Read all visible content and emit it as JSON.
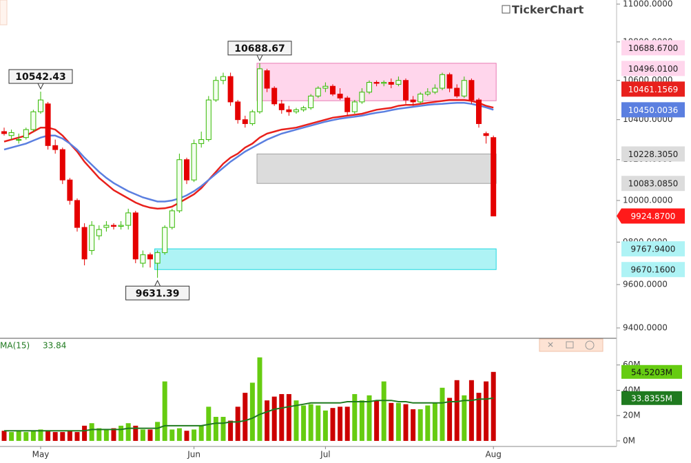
{
  "chart_data": {
    "type": "candlestick",
    "brand": "TickerChart",
    "categories": [
      null,
      null,
      null,
      null,
      null,
      "May",
      null,
      null,
      null,
      null,
      null,
      null,
      null,
      null,
      null,
      null,
      null,
      null,
      null,
      null,
      null,
      null,
      null,
      null,
      null,
      null,
      "Jun",
      null,
      null,
      null,
      null,
      null,
      null,
      null,
      null,
      null,
      null,
      null,
      null,
      null,
      null,
      null,
      null,
      null,
      "Jul",
      null,
      null,
      null,
      null,
      null,
      null,
      null,
      null,
      null,
      null,
      null,
      null,
      null,
      null,
      null,
      null,
      null,
      null,
      null,
      null,
      null,
      null,
      "Aug"
    ],
    "open": [
      10340,
      10320,
      10300,
      10310,
      10350,
      10440,
      10480,
      10270,
      10250,
      10100,
      10000,
      9870,
      9760,
      9830,
      9870,
      9880,
      9875,
      9880,
      9940,
      9700,
      9740,
      9700,
      9750,
      9870,
      9950,
      10200,
      10100,
      10280,
      10300,
      10500,
      10600,
      10620,
      10490,
      10400,
      10380,
      10440,
      10650,
      10560,
      10480,
      10450,
      10440,
      10450,
      10460,
      10520,
      10560,
      10570,
      10530,
      10510,
      10440,
      10490,
      10540,
      10590,
      10585,
      10590,
      10580,
      10600,
      10500,
      10490,
      10530,
      10540,
      10560,
      10630,
      10560,
      10520,
      10600,
      10500,
      10330,
      10310
    ],
    "high": [
      10360,
      10350,
      10330,
      10360,
      10450,
      10542.43,
      10490,
      10300,
      10260,
      10110,
      10010,
      9890,
      9900,
      9880,
      9900,
      9890,
      9900,
      9960,
      9950,
      9760,
      9750,
      9760,
      9880,
      9960,
      10230,
      10210,
      10300,
      10340,
      10520,
      10620,
      10640,
      10640,
      10500,
      10420,
      10450,
      10688.67,
      10660,
      10570,
      10500,
      10470,
      10460,
      10470,
      10530,
      10570,
      10590,
      10580,
      10560,
      10520,
      10500,
      10560,
      10600,
      10600,
      10600,
      10610,
      10620,
      10610,
      10520,
      10540,
      10560,
      10580,
      10640,
      10640,
      10580,
      10620,
      10610,
      10510,
      10340,
      10320
    ],
    "low": [
      10320,
      10300,
      10280,
      10300,
      10340,
      10430,
      10250,
      10230,
      10080,
      9980,
      9850,
      9690,
      9740,
      9810,
      9850,
      9860,
      9860,
      9860,
      9700,
      9680,
      9680,
      9631.39,
      9740,
      9860,
      9940,
      10080,
      10090,
      10260,
      10290,
      10490,
      10580,
      10470,
      10380,
      10360,
      10370,
      10430,
      10540,
      10470,
      10430,
      10420,
      10430,
      10440,
      10450,
      10510,
      10540,
      10520,
      10500,
      10420,
      10430,
      10480,
      10530,
      10570,
      10570,
      10560,
      10570,
      10480,
      10470,
      10480,
      10520,
      10530,
      10550,
      10540,
      10510,
      10510,
      10480,
      10360,
      10280,
      9924.87
    ],
    "close": [
      10330,
      10335,
      10300,
      10350,
      10440,
      10500,
      10270,
      10250,
      10100,
      10000,
      9870,
      9720,
      9880,
      9860,
      9880,
      9875,
      9880,
      9940,
      9720,
      9740,
      9720,
      9750,
      9870,
      9950,
      10200,
      10100,
      10280,
      10300,
      10500,
      10600,
      10620,
      10490,
      10400,
      10380,
      10440,
      10660,
      10560,
      10480,
      10450,
      10440,
      10450,
      10460,
      10520,
      10560,
      10570,
      10530,
      10510,
      10440,
      10490,
      10540,
      10590,
      10585,
      10590,
      10580,
      10600,
      10500,
      10490,
      10530,
      10540,
      10560,
      10630,
      10560,
      10520,
      10600,
      10500,
      10380,
      10320,
      9924.87
    ],
    "close_label": "9924.8700",
    "close_tag_color": "#ff1a1a",
    "up_color": "#33b800",
    "down_color": "#e50000",
    "log_scale": true,
    "ylim": [
      9356,
      11022
    ],
    "yticks": [
      {
        "value": 11000,
        "label": "11000.0000"
      },
      {
        "value": 10800,
        "label": "10800.0000"
      },
      {
        "value": 10600,
        "label": "10600.0000"
      },
      {
        "value": 10400,
        "label": "10400.0000"
      },
      {
        "value": 10200,
        "label": "10200.0000"
      },
      {
        "value": 10000,
        "label": "10000.0000"
      },
      {
        "value": 9800,
        "label": "9800.0000"
      },
      {
        "value": 9600,
        "label": "9600.0000"
      },
      {
        "value": 9400,
        "label": "9400.0000"
      }
    ],
    "marked_highs": [
      5,
      35
    ],
    "marked_lows": [
      21
    ],
    "moving_averages": [
      {
        "color": "#e8201c",
        "last_label": "10461.1569",
        "values": [
          10290,
          10300,
          10310,
          10320,
          10340,
          10360,
          10360,
          10350,
          10320,
          10280,
          10240,
          10190,
          10150,
          10110,
          10080,
          10050,
          10030,
          10010,
          9990,
          9975,
          9965,
          9960,
          9962,
          9970,
          9990,
          10010,
          10030,
          10060,
          10100,
          10140,
          10180,
          10210,
          10230,
          10260,
          10280,
          10310,
          10330,
          10340,
          10350,
          10355,
          10360,
          10370,
          10380,
          10390,
          10400,
          10410,
          10415,
          10420,
          10425,
          10430,
          10440,
          10450,
          10455,
          10460,
          10470,
          10475,
          10475,
          10480,
          10485,
          10490,
          10495,
          10500,
          10500,
          10500,
          10495,
          10485,
          10470,
          10461.1569
        ]
      },
      {
        "color": "#5b7fe0",
        "last_label": "10450.0036",
        "values": [
          10250,
          10260,
          10270,
          10280,
          10295,
          10310,
          10320,
          10320,
          10305,
          10280,
          10250,
          10210,
          10175,
          10140,
          10110,
          10085,
          10065,
          10045,
          10030,
          10015,
          10005,
          9995,
          9995,
          10000,
          10010,
          10025,
          10045,
          10070,
          10100,
          10130,
          10160,
          10190,
          10215,
          10240,
          10260,
          10280,
          10300,
          10315,
          10330,
          10340,
          10350,
          10360,
          10370,
          10380,
          10390,
          10398,
          10405,
          10410,
          10415,
          10420,
          10428,
          10435,
          10440,
          10448,
          10455,
          10460,
          10465,
          10470,
          10475,
          10478,
          10480,
          10483,
          10485,
          10485,
          10480,
          10472,
          10462,
          10450.0036
        ]
      }
    ],
    "zones": [
      {
        "from": 35,
        "high": 10688.67,
        "low": 10496.01,
        "high_label": "10688.6700",
        "low_label": "10496.0100",
        "color": "#ffd6ec",
        "edge": "#e87bb5"
      },
      {
        "from": 35,
        "high": 10228.305,
        "low": 10083.085,
        "high_label": "10228.3050",
        "low_label": "10083.0850",
        "color": "#dcdcdc",
        "edge": "#a0a0a0"
      },
      {
        "from": 21,
        "high": 9767.94,
        "low": 9670.16,
        "high_label": "9767.9400",
        "low_label": "9670.1600",
        "color": "#aef3f5",
        "edge": "#20d8e0"
      }
    ],
    "volume": {
      "values": [
        8,
        7,
        8,
        7,
        8,
        9,
        8,
        7,
        7,
        8,
        7,
        12,
        14,
        10,
        9,
        10,
        12,
        14,
        12,
        9,
        9,
        15,
        47,
        9,
        10,
        8,
        9,
        12,
        27,
        19,
        19,
        16,
        27,
        38,
        46,
        66,
        32,
        35,
        37,
        37,
        32,
        28,
        29,
        28,
        24,
        26,
        27,
        27,
        37,
        32,
        36,
        32,
        47,
        30,
        30,
        29,
        25,
        25,
        28,
        30,
        42,
        34,
        48,
        36,
        48,
        38,
        47,
        54.5203
      ],
      "last_label": "54.5203M",
      "up_color": "#66cc11",
      "down_color": "#cc0000",
      "ma_name": "MA(15)",
      "ma_shown": 33.84,
      "ma_color": "#1f7a1f",
      "ma_last_label": "33.8355M",
      "ma_values": [
        8,
        8,
        8,
        8,
        8,
        8,
        8,
        8,
        8,
        8,
        8,
        8,
        9,
        9,
        9,
        9,
        9,
        10,
        10,
        10,
        10,
        10,
        12,
        12,
        12,
        12,
        12,
        12,
        13,
        14,
        14,
        15,
        15,
        16,
        18,
        21,
        23,
        25,
        26,
        27,
        28,
        29,
        30,
        30,
        30,
        30,
        30,
        31,
        31,
        31,
        31,
        32,
        32,
        32,
        31,
        31,
        30,
        30,
        30,
        30,
        30,
        31,
        31,
        32,
        32,
        33,
        33,
        33.8355
      ],
      "vlim": [
        -4.4,
        80
      ],
      "vticks": [
        {
          "value": 0,
          "label": "0M"
        },
        {
          "value": 20,
          "label": "20M"
        },
        {
          "value": 40,
          "label": "40M"
        },
        {
          "value": 60,
          "label": "60M"
        }
      ]
    }
  }
}
